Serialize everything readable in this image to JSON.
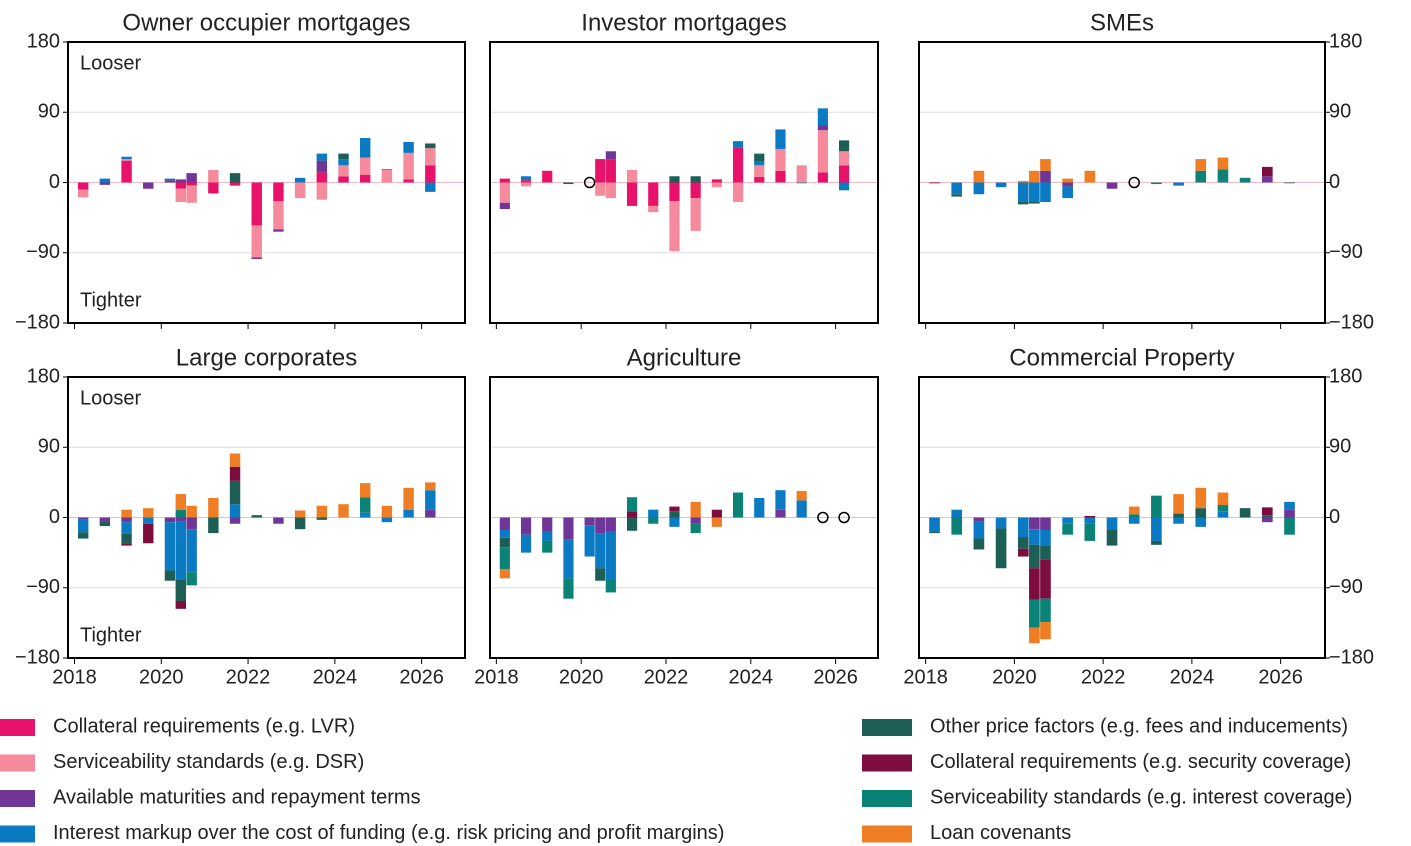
{
  "chart_data": {
    "type": "bar",
    "stacked": true,
    "x": [
      2018.2,
      2018.7,
      2019.2,
      2019.7,
      2020.2,
      2020.45,
      2020.7,
      2021.2,
      2021.7,
      2022.2,
      2022.7,
      2023.2,
      2023.7,
      2024.2,
      2024.7,
      2025.2,
      2025.7,
      2026.2
    ],
    "xlim": [
      2017.85,
      2027.0
    ],
    "xticks": [
      2018,
      2020,
      2022,
      2024,
      2026
    ],
    "ylim": [
      -180,
      180
    ],
    "yticks": [
      180,
      90,
      0,
      {
        "value": -90,
        "label": "−90"
      },
      {
        "value": -180,
        "label": "−180"
      }
    ],
    "grid": true,
    "series": [
      {
        "name": "Collateral requirements (e.g. LVR)",
        "color": "#e8126a"
      },
      {
        "name": "Serviceability standards (e.g. DSR)",
        "color": "#f48a9b"
      },
      {
        "name": "Available maturities and repayment terms",
        "color": "#6f3597"
      },
      {
        "name": "Interest markup over the cost of funding (e.g. risk pricing and profit margins)",
        "color": "#0a7bc2"
      },
      {
        "name": "Other price factors (e.g. fees and inducements)",
        "color": "#1d5e55"
      },
      {
        "name": "Collateral requirements (e.g. security coverage)",
        "color": "#7d0d3e"
      },
      {
        "name": "Serviceability standards (e.g. interest coverage)",
        "color": "#0a8276"
      },
      {
        "name": "Loan covenants",
        "color": "#ef7d23"
      }
    ],
    "panels": [
      {
        "title": "Owner occupier mortgages",
        "annotations": [
          "Looser",
          "Tighter"
        ],
        "values": [
          [
            -9,
            0,
            28,
            0,
            0,
            -8,
            -4,
            -14,
            -4,
            -55,
            -24,
            0,
            13,
            8,
            10,
            0,
            4,
            22
          ],
          [
            -10,
            0,
            2,
            0,
            0,
            -17,
            -22,
            16,
            0,
            -41,
            -36,
            -20,
            -22,
            14,
            22,
            16,
            34,
            22
          ],
          [
            0,
            -3,
            0,
            -8,
            3,
            4,
            12,
            0,
            0,
            -2,
            -3,
            0,
            15,
            0,
            0,
            0,
            0,
            0
          ],
          [
            0,
            5,
            3,
            0,
            2,
            0,
            0,
            0,
            0,
            0,
            0,
            6,
            9,
            8,
            25,
            1,
            14,
            -12
          ],
          [
            0,
            0,
            0,
            0,
            0,
            0,
            0,
            0,
            12,
            0,
            0,
            0,
            0,
            7,
            0,
            0,
            0,
            6
          ],
          [
            0,
            0,
            0,
            0,
            0,
            0,
            0,
            0,
            0,
            0,
            0,
            0,
            0,
            0,
            0,
            0,
            0,
            0
          ],
          [
            0,
            0,
            0,
            0,
            0,
            0,
            0,
            0,
            0,
            0,
            0,
            0,
            0,
            0,
            0,
            0,
            0,
            0
          ],
          [
            0,
            0,
            0,
            0,
            0,
            0,
            0,
            0,
            0,
            0,
            0,
            0,
            0,
            0,
            0,
            0,
            0,
            0
          ]
        ]
      },
      {
        "title": "Investor mortgages",
        "values": [
          [
            5,
            3,
            15,
            0,
            0,
            30,
            30,
            -30,
            -30,
            -24,
            -20,
            4,
            45,
            7,
            15,
            0,
            13,
            22
          ],
          [
            -26,
            -5,
            0,
            0,
            0,
            -17,
            -20,
            16,
            -8,
            -64,
            -42,
            -6,
            -25,
            15,
            28,
            22,
            54,
            18
          ],
          [
            -8,
            0,
            0,
            0,
            0,
            0,
            10,
            0,
            0,
            0,
            0,
            0,
            0,
            0,
            0,
            0,
            6,
            0
          ],
          [
            0,
            5,
            0,
            0,
            0,
            0,
            0,
            0,
            0,
            0,
            0,
            0,
            8,
            5,
            25,
            -1,
            22,
            -10
          ],
          [
            0,
            0,
            0,
            -2,
            0,
            0,
            0,
            0,
            0,
            8,
            8,
            0,
            0,
            10,
            0,
            0,
            0,
            14
          ],
          [
            0,
            0,
            0,
            0,
            0,
            0,
            0,
            0,
            0,
            0,
            0,
            0,
            0,
            0,
            0,
            0,
            0,
            0
          ],
          [
            0,
            0,
            0,
            0,
            0,
            0,
            0,
            0,
            0,
            0,
            0,
            0,
            0,
            0,
            0,
            0,
            0,
            0
          ],
          [
            0,
            0,
            0,
            0,
            0,
            0,
            0,
            0,
            0,
            0,
            0,
            0,
            0,
            0,
            0,
            0,
            0,
            0
          ]
        ]
      },
      {
        "title": "SMEs",
        "values": [
          [
            0,
            0,
            0,
            0,
            0,
            0,
            0,
            0,
            0,
            0,
            0,
            0,
            0,
            0,
            0,
            0,
            0,
            0
          ],
          [
            0,
            0,
            0,
            0,
            0,
            0,
            0,
            0,
            0,
            0,
            0,
            0,
            0,
            0,
            0,
            0,
            0,
            0
          ],
          [
            0,
            0,
            0,
            0,
            0,
            0,
            15,
            -5,
            0,
            -8,
            0,
            0,
            0,
            0,
            0,
            0,
            8,
            0
          ],
          [
            0,
            -15,
            -15,
            -6,
            -25,
            -25,
            -25,
            -15,
            0,
            0,
            0,
            0,
            -4,
            0,
            2,
            0,
            0,
            0
          ],
          [
            0,
            -3,
            0,
            0,
            -3,
            -2,
            0,
            0,
            0,
            0,
            0,
            0,
            0,
            0,
            0,
            0,
            0,
            -1
          ],
          [
            -1,
            0,
            0,
            0,
            0,
            0,
            0,
            0,
            0,
            0,
            0,
            0,
            0,
            0,
            0,
            0,
            12,
            0
          ],
          [
            0,
            0,
            0,
            0,
            0,
            0,
            0,
            0,
            0,
            0,
            0,
            -2,
            0,
            15,
            15,
            6,
            0,
            0
          ],
          [
            0,
            0,
            15,
            0,
            2,
            15,
            15,
            5,
            15,
            0,
            0,
            0,
            0,
            15,
            15,
            0,
            0,
            0
          ]
        ]
      },
      {
        "title": "Large corporates",
        "annotations": [
          "Looser",
          "Tighter"
        ],
        "values": [
          [
            0,
            0,
            0,
            0,
            0,
            0,
            0,
            0,
            0,
            0,
            0,
            0,
            0,
            0,
            0,
            0,
            0,
            0
          ],
          [
            0,
            0,
            0,
            0,
            0,
            0,
            0,
            0,
            0,
            0,
            0,
            0,
            0,
            0,
            0,
            0,
            0,
            0
          ],
          [
            -2,
            -5,
            -6,
            0,
            -6,
            -5,
            -15,
            0,
            -8,
            0,
            -8,
            0,
            0,
            0,
            0,
            0,
            0,
            10
          ],
          [
            -17,
            0,
            -15,
            -8,
            -62,
            -75,
            -55,
            0,
            17,
            0,
            0,
            0,
            0,
            0,
            6,
            -6,
            10,
            25
          ],
          [
            -8,
            -6,
            -12,
            0,
            -13,
            -27,
            0,
            -20,
            30,
            3,
            0,
            -15,
            -3,
            0,
            0,
            0,
            0,
            0
          ],
          [
            0,
            0,
            -3,
            -25,
            0,
            -10,
            0,
            0,
            18,
            0,
            0,
            0,
            0,
            0,
            0,
            0,
            0,
            0
          ],
          [
            0,
            0,
            0,
            0,
            0,
            10,
            -17,
            0,
            0,
            0,
            0,
            0,
            0,
            0,
            20,
            0,
            0,
            0
          ],
          [
            0,
            0,
            10,
            12,
            0,
            20,
            15,
            25,
            17,
            0,
            0,
            9,
            15,
            17,
            18,
            15,
            28,
            10
          ]
        ]
      },
      {
        "title": "Agriculture",
        "values": [
          [
            0,
            0,
            0,
            0,
            0,
            0,
            0,
            0,
            0,
            0,
            0,
            0,
            0,
            0,
            0,
            0,
            0,
            0
          ],
          [
            0,
            0,
            0,
            0,
            0,
            0,
            0,
            0,
            0,
            0,
            0,
            0,
            0,
            0,
            0,
            0,
            0,
            0
          ],
          [
            -16,
            -22,
            -18,
            -28,
            -10,
            -20,
            -18,
            0,
            0,
            0,
            -8,
            0,
            0,
            0,
            10,
            0,
            0,
            0
          ],
          [
            -10,
            -23,
            -12,
            -50,
            -40,
            -45,
            -62,
            0,
            10,
            -12,
            0,
            0,
            0,
            25,
            25,
            22,
            0,
            0
          ],
          [
            -12,
            0,
            0,
            0,
            0,
            -16,
            0,
            -17,
            0,
            8,
            0,
            0,
            0,
            0,
            0,
            0,
            0,
            0
          ],
          [
            0,
            0,
            0,
            0,
            0,
            0,
            0,
            8,
            0,
            6,
            0,
            10,
            0,
            0,
            0,
            0,
            0,
            0
          ],
          [
            -28,
            0,
            -15,
            -26,
            0,
            0,
            -16,
            18,
            -8,
            0,
            -12,
            0,
            32,
            0,
            0,
            0,
            0,
            0
          ],
          [
            -12,
            0,
            0,
            0,
            0,
            0,
            0,
            0,
            0,
            0,
            20,
            -12,
            0,
            0,
            0,
            12,
            0,
            0
          ]
        ]
      },
      {
        "title": "Commercial Property",
        "values": [
          [
            0,
            0,
            0,
            0,
            0,
            0,
            0,
            0,
            0,
            0,
            0,
            0,
            0,
            0,
            0,
            0,
            0,
            0
          ],
          [
            0,
            0,
            0,
            0,
            0,
            0,
            0,
            0,
            0,
            0,
            0,
            0,
            0,
            0,
            0,
            0,
            0,
            0
          ],
          [
            0,
            0,
            -5,
            0,
            0,
            -15,
            -16,
            0,
            0,
            0,
            0,
            0,
            0,
            0,
            0,
            0,
            -6,
            10
          ],
          [
            -18,
            10,
            -22,
            -14,
            -25,
            -20,
            -20,
            -8,
            -8,
            -16,
            -8,
            -30,
            -8,
            -12,
            8,
            0,
            0,
            10
          ],
          [
            -2,
            0,
            -14,
            -51,
            -15,
            -30,
            -18,
            0,
            0,
            -20,
            0,
            -5,
            5,
            12,
            0,
            12,
            3,
            0
          ],
          [
            0,
            0,
            0,
            0,
            -10,
            -40,
            -50,
            0,
            2,
            0,
            0,
            0,
            0,
            0,
            0,
            0,
            10,
            0
          ],
          [
            0,
            -22,
            0,
            0,
            0,
            -36,
            -30,
            -14,
            -22,
            0,
            4,
            28,
            0,
            0,
            8,
            0,
            0,
            -22
          ],
          [
            0,
            0,
            0,
            0,
            0,
            -20,
            -22,
            0,
            0,
            0,
            10,
            0,
            25,
            26,
            16,
            0,
            0,
            0
          ]
        ]
      }
    ]
  }
}
